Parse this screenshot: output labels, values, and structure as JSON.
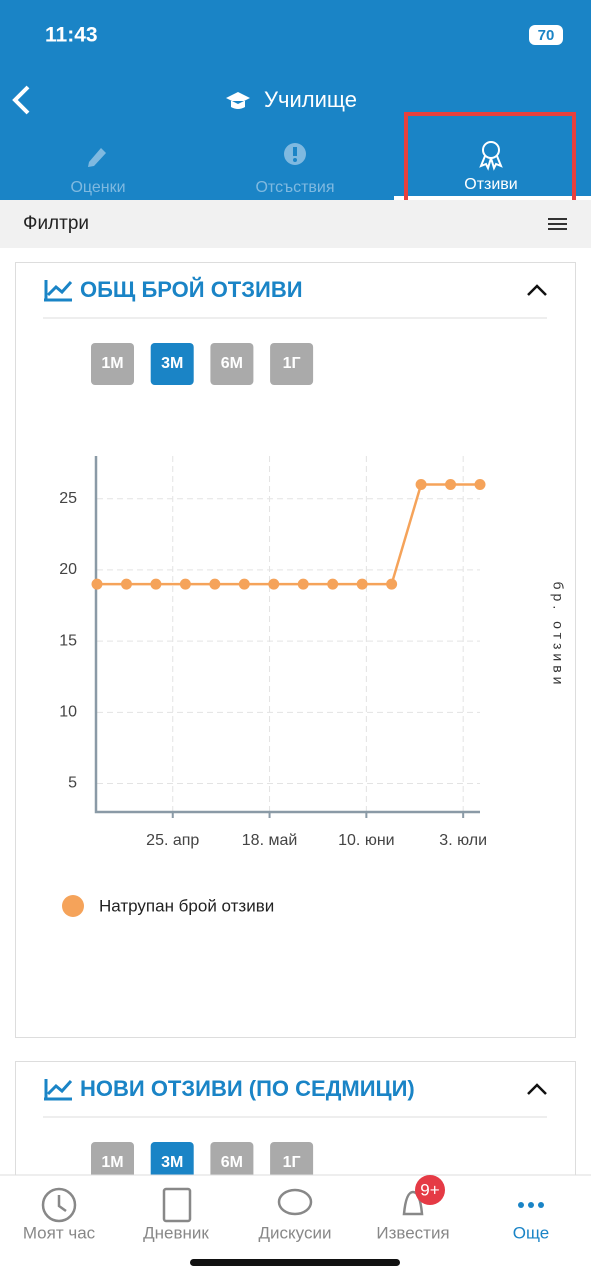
{
  "status_bar": {
    "time": "11:43",
    "battery": "70"
  },
  "header": {
    "title": "Училище"
  },
  "tabs": [
    "Оценки",
    "Отсъствия",
    "Отзиви"
  ],
  "filter": {
    "label": "Филтри"
  },
  "cards": [
    {
      "title": "ОБЩ БРОЙ ОТЗИВИ",
      "ranges": [
        "1М",
        "3М",
        "6М",
        "1Г"
      ]
    },
    {
      "title": "НОВИ ОТЗИВИ (ПО СЕДМИЦИ)",
      "ranges": [
        "1М",
        "3М",
        "6М",
        "1Г"
      ]
    }
  ],
  "chart_data": {
    "type": "line",
    "x": [
      "04-07",
      "04-14",
      "04-21",
      "04-28",
      "05-05",
      "05-12",
      "05-19",
      "05-26",
      "06-02",
      "06-09",
      "06-16",
      "06-23",
      "06-30",
      "07-07"
    ],
    "xlim": [
      "04-07",
      "07-07"
    ],
    "xticks": [
      {
        "value": "04-25",
        "label": "25. апр"
      },
      {
        "value": "05-18",
        "label": "18. май"
      },
      {
        "value": "06-10",
        "label": "10. юни"
      },
      {
        "value": "07-03",
        "label": "3. юли"
      }
    ],
    "ylim": [
      3,
      28
    ],
    "yticks": [
      5,
      10,
      15,
      20,
      25
    ],
    "y_label": "бр. отзиви",
    "grid": true,
    "series": [
      {
        "name": "Натрупан брой отзиви",
        "color": "#f5a35a",
        "values": [
          19,
          19,
          19,
          19,
          19,
          19,
          19,
          19,
          19,
          19,
          19,
          26,
          26,
          26
        ]
      }
    ]
  },
  "bottom_nav": {
    "items": [
      "Моят час",
      "Дневник",
      "Дискусии",
      "Известия",
      "Още"
    ],
    "badge": "9+"
  }
}
